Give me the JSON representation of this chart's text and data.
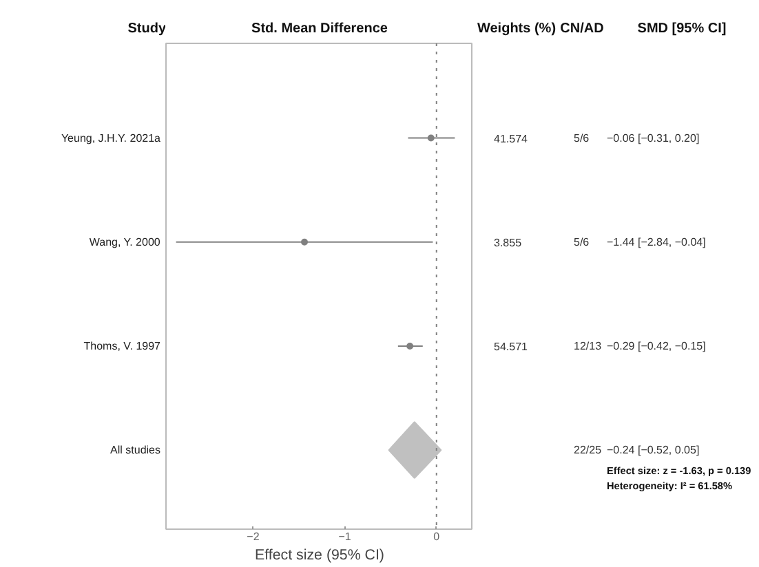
{
  "chart_data": {
    "type": "scatter",
    "orientation": "horizontal",
    "title": "Std. Mean Difference",
    "xlabel": "Effect size (95% CI)",
    "categories": [
      "Yeung, J.H.Y. 2021a",
      "Wang, Y. 2000",
      "Thoms, V. 1997",
      "All studies"
    ],
    "series": [
      {
        "color": "#808080",
        "marker": "circle",
        "values": [
          -0.06,
          -1.44,
          -0.29,
          null
        ],
        "errors": [
          [
            -0.31,
            0.2
          ],
          [
            -2.84,
            -0.04
          ],
          [
            -0.42,
            -0.15
          ],
          null
        ]
      },
      {
        "color": "#c0c0c0",
        "marker": "diamond",
        "values": [
          null,
          null,
          null,
          -0.24
        ],
        "errors": [
          null,
          null,
          null,
          [
            -0.52,
            0.05
          ]
        ]
      }
    ],
    "xlim": [
      -2.95,
      0.4
    ],
    "xticks": [
      {
        "value": -2,
        "label": "−2"
      },
      {
        "value": -1,
        "label": "−1"
      },
      0
    ],
    "ref_lines": [
      {
        "axis": "x",
        "value": 0,
        "color": "#808080",
        "line_style": "dotted"
      }
    ],
    "grid": false,
    "annotations": [
      "Study",
      "Weights (%)",
      "CN/AD",
      "SMD [95% CI]",
      "41.574",
      "5/6",
      "−0.06 [−0.31, 0.20]",
      "3.855",
      "5/6",
      "−1.44 [−2.84, −0.04]",
      "54.571",
      "12/13",
      "−0.29 [−0.42, −0.15]",
      "22/25",
      "−0.24 [−0.52, 0.05]",
      "Effect size: z = -1.63, p = 0.139",
      "Heterogeneity: I² = 61.58%"
    ]
  }
}
